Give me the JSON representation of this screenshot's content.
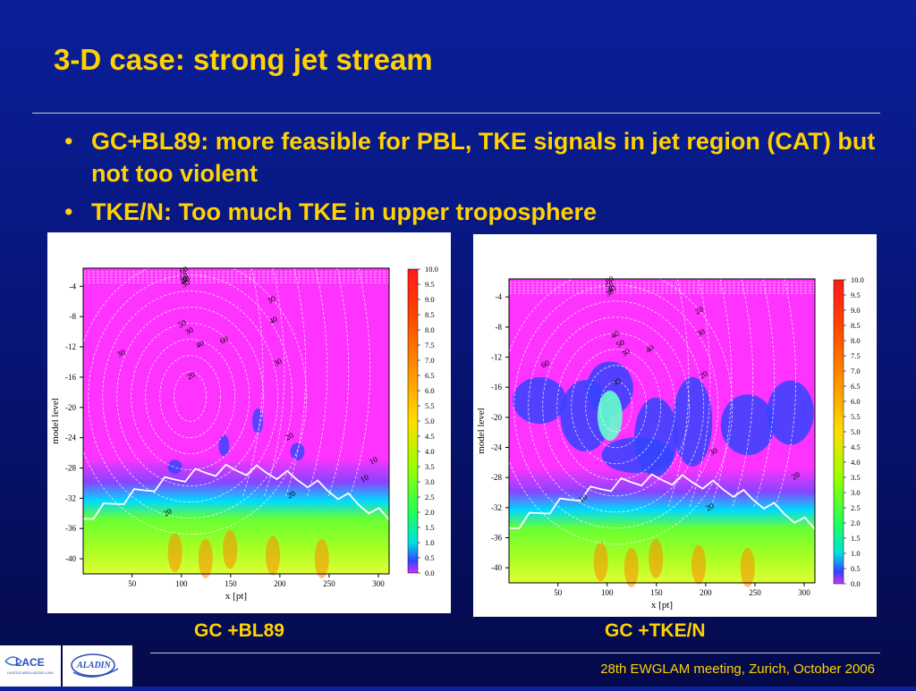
{
  "slide": {
    "title": "3-D case: strong jet stream",
    "bullets": [
      {
        "marker": "•",
        "text": "GC+BL89: more feasible for PBL, TKE signals in jet region (CAT) but not too violent"
      },
      {
        "marker": "•",
        "text": "TKE/N: Too much TKE in upper troposphere"
      }
    ],
    "footer": "28th EWGLAM meeting, Zurich, October 2006",
    "logo_left": {
      "text": "LACE",
      "subtitle": "LIMITED AREA MODELLING"
    },
    "logo_right": {
      "text": "ALADIN"
    }
  },
  "panels": [
    {
      "caption": "GC +BL89",
      "xlabel": "x [pt]",
      "ylabel": "model level",
      "x_ticks": [
        "50",
        "100",
        "150",
        "200",
        "250",
        "300"
      ],
      "y_ticks": [
        "-4",
        "-8",
        "-12",
        "-16",
        "-20",
        "-24",
        "-28",
        "-32",
        "-36",
        "-40"
      ],
      "colorbar_labels": [
        "10.0",
        "9.5",
        "9.0",
        "8.5",
        "8.0",
        "7.5",
        "7.0",
        "6.5",
        "6.0",
        "5.5",
        "5.0",
        "4.5",
        "4.0",
        "3.5",
        "3.0",
        "2.5",
        "2.0",
        "1.5",
        "1.0",
        "0.5",
        "0.0"
      ],
      "contour_labels": [
        "60",
        "50",
        "40",
        "30",
        "20",
        "30",
        "40",
        "50",
        "30",
        "40",
        "60",
        "30",
        "20",
        "30",
        "20",
        "10",
        "10",
        "20",
        "20"
      ]
    },
    {
      "caption": "GC +TKE/N",
      "xlabel": "x [pt]",
      "ylabel": "model level",
      "x_ticks": [
        "50",
        "100",
        "150",
        "200",
        "250",
        "300"
      ],
      "y_ticks": [
        "-4",
        "-8",
        "-12",
        "-16",
        "-20",
        "-24",
        "-28",
        "-32",
        "-36",
        "-40"
      ],
      "colorbar_labels": [
        "10.0",
        "9.5",
        "9.0",
        "8.5",
        "8.0",
        "7.5",
        "7.0",
        "6.5",
        "6.0",
        "5.5",
        "5.0",
        "4.5",
        "4.0",
        "3.5",
        "3.0",
        "2.5",
        "2.0",
        "1.5",
        "1.0",
        "0.5",
        "0.0"
      ],
      "contour_labels": [
        "60",
        "50",
        "40",
        "30",
        "20",
        "30",
        "40",
        "50",
        "30",
        "40",
        "60",
        "30",
        "20",
        "30",
        "20",
        "10",
        "20"
      ]
    }
  ],
  "colors": {
    "background": "#0a1f99",
    "accent_text": "#ffd200",
    "panel_bg": "#ffffff",
    "field_upper": "#ff33ff",
    "field_mid": "#3344ff",
    "field_low": "#66ff33",
    "field_max": "#ff8800"
  }
}
